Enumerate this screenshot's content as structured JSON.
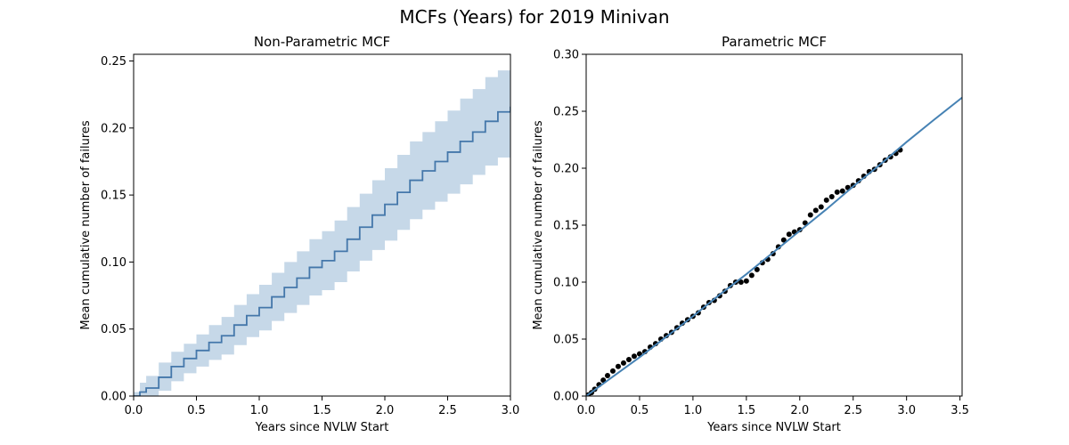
{
  "figure": {
    "suptitle": "MCFs (Years) for 2019 Minivan"
  },
  "colors": {
    "line": "#4477aa",
    "band": "#c6d8e8",
    "fit": "#4682b4",
    "points": "#000000",
    "axis": "#000000"
  },
  "chart_data": [
    {
      "type": "line",
      "title": "Non-Parametric MCF",
      "xlabel": "Years since NVLW Start",
      "ylabel": "Mean cumulative number of failures",
      "xlim": [
        0,
        3.0
      ],
      "ylim": [
        0,
        0.255
      ],
      "xticks": [
        "0.0",
        "0.5",
        "1.0",
        "1.5",
        "2.0",
        "2.5",
        "3.0"
      ],
      "yticks": [
        "0.00",
        "0.05",
        "0.10",
        "0.15",
        "0.20",
        "0.25"
      ],
      "series": [
        {
          "kind": "step_with_ci",
          "x": [
            0.0,
            0.05,
            0.1,
            0.2,
            0.3,
            0.4,
            0.5,
            0.6,
            0.7,
            0.8,
            0.9,
            1.0,
            1.1,
            1.2,
            1.3,
            1.4,
            1.5,
            1.6,
            1.7,
            1.8,
            1.9,
            2.0,
            2.1,
            2.2,
            2.3,
            2.4,
            2.5,
            2.6,
            2.7,
            2.8,
            2.9,
            3.0
          ],
          "y": [
            0.0,
            0.003,
            0.006,
            0.014,
            0.022,
            0.028,
            0.034,
            0.04,
            0.045,
            0.053,
            0.06,
            0.066,
            0.074,
            0.081,
            0.088,
            0.096,
            0.101,
            0.108,
            0.117,
            0.126,
            0.135,
            0.143,
            0.152,
            0.161,
            0.168,
            0.175,
            0.182,
            0.19,
            0.197,
            0.205,
            0.212,
            0.216
          ],
          "lower": [
            0.0,
            0.0,
            0.0,
            0.004,
            0.011,
            0.017,
            0.022,
            0.027,
            0.031,
            0.038,
            0.044,
            0.049,
            0.056,
            0.062,
            0.068,
            0.075,
            0.079,
            0.085,
            0.093,
            0.101,
            0.109,
            0.116,
            0.124,
            0.132,
            0.139,
            0.145,
            0.151,
            0.158,
            0.165,
            0.172,
            0.178,
            0.19
          ],
          "upper": [
            0.003,
            0.01,
            0.015,
            0.025,
            0.033,
            0.039,
            0.046,
            0.053,
            0.059,
            0.068,
            0.076,
            0.083,
            0.092,
            0.1,
            0.108,
            0.117,
            0.123,
            0.131,
            0.141,
            0.151,
            0.161,
            0.17,
            0.18,
            0.19,
            0.197,
            0.205,
            0.213,
            0.222,
            0.229,
            0.238,
            0.243,
            0.243
          ]
        }
      ]
    },
    {
      "type": "scatter",
      "title": "Parametric MCF",
      "xlabel": "Years since NVLW Start",
      "ylabel": "Mean cumulative number of failures",
      "xlim": [
        0,
        3.52
      ],
      "ylim": [
        0,
        0.3
      ],
      "xticks": [
        "0.0",
        "0.5",
        "1.0",
        "1.5",
        "2.0",
        "2.5",
        "3.0",
        "3.5"
      ],
      "yticks": [
        "0.00",
        "0.05",
        "0.10",
        "0.15",
        "0.20",
        "0.25",
        "0.30"
      ],
      "series": [
        {
          "kind": "points",
          "x": [
            0.02,
            0.05,
            0.08,
            0.12,
            0.16,
            0.2,
            0.25,
            0.3,
            0.35,
            0.4,
            0.45,
            0.5,
            0.55,
            0.6,
            0.65,
            0.7,
            0.75,
            0.8,
            0.85,
            0.9,
            0.95,
            1.0,
            1.05,
            1.1,
            1.15,
            1.2,
            1.25,
            1.3,
            1.35,
            1.4,
            1.45,
            1.5,
            1.55,
            1.6,
            1.65,
            1.7,
            1.75,
            1.8,
            1.85,
            1.9,
            1.95,
            2.0,
            2.05,
            2.1,
            2.15,
            2.2,
            2.25,
            2.3,
            2.35,
            2.4,
            2.45,
            2.5,
            2.55,
            2.6,
            2.65,
            2.7,
            2.75,
            2.8,
            2.85,
            2.9,
            2.94
          ],
          "y": [
            0.001,
            0.003,
            0.006,
            0.01,
            0.014,
            0.018,
            0.022,
            0.026,
            0.029,
            0.032,
            0.035,
            0.037,
            0.039,
            0.043,
            0.046,
            0.05,
            0.053,
            0.056,
            0.06,
            0.064,
            0.067,
            0.07,
            0.073,
            0.078,
            0.082,
            0.084,
            0.088,
            0.092,
            0.097,
            0.1,
            0.1,
            0.101,
            0.106,
            0.111,
            0.117,
            0.12,
            0.125,
            0.131,
            0.137,
            0.142,
            0.144,
            0.146,
            0.152,
            0.159,
            0.163,
            0.166,
            0.172,
            0.175,
            0.179,
            0.18,
            0.183,
            0.185,
            0.189,
            0.193,
            0.197,
            0.199,
            0.203,
            0.207,
            0.21,
            0.213,
            0.216
          ]
        },
        {
          "kind": "fit_line",
          "x": [
            0.0,
            0.25,
            0.5,
            0.75,
            1.0,
            1.25,
            1.5,
            1.75,
            2.0,
            2.25,
            2.5,
            2.75,
            3.0,
            3.25,
            3.52
          ],
          "y": [
            0.0,
            0.017,
            0.034,
            0.052,
            0.07,
            0.089,
            0.107,
            0.126,
            0.145,
            0.164,
            0.184,
            0.203,
            0.223,
            0.242,
            0.262
          ]
        }
      ]
    }
  ]
}
